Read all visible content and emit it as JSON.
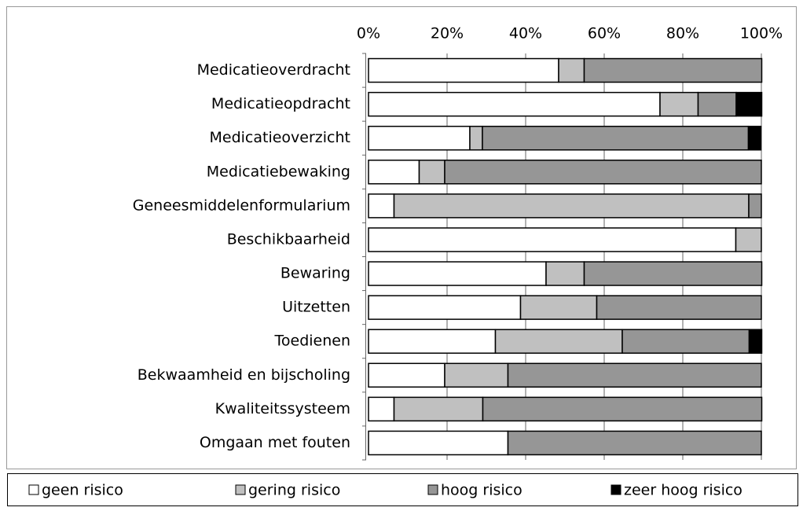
{
  "chart_data": {
    "type": "stacked_barh",
    "categories": [
      "Medicatieoverdracht",
      "Medicatieopdracht",
      "Medicatieoverzicht",
      "Medicatiebewaking",
      "Geneesmiddelenformularium",
      "Beschikbaarheid",
      "Bewaring",
      "Uitzetten",
      "Toedienen",
      "Bekwaamheid en bijscholing",
      "Kwaliteitssysteem",
      "Omgaan met fouten"
    ],
    "series": [
      {
        "name": "geen risico",
        "color": "#ffffff",
        "values": [
          48.4,
          74.2,
          25.8,
          12.9,
          6.5,
          93.5,
          45.2,
          38.7,
          32.3,
          19.4,
          6.5,
          35.5
        ]
      },
      {
        "name": "gering risico",
        "color": "#c0c0c0",
        "values": [
          6.5,
          9.7,
          3.2,
          6.5,
          90.3,
          6.5,
          9.7,
          19.4,
          32.3,
          16.1,
          22.6,
          0
        ]
      },
      {
        "name": "hoog risico",
        "color": "#969696",
        "values": [
          45.2,
          9.7,
          67.7,
          80.6,
          3.2,
          0,
          45.2,
          41.9,
          32.3,
          64.5,
          71.0,
          64.5
        ]
      },
      {
        "name": "zeer hoog risico",
        "color": "#000000",
        "values": [
          0,
          6.5,
          3.2,
          0,
          0,
          0,
          0,
          0,
          3.2,
          0,
          0,
          0
        ]
      }
    ],
    "xlim": [
      0,
      100
    ],
    "xticks": [
      {
        "value": 0,
        "label": "0%"
      },
      {
        "value": 20,
        "label": "20%"
      },
      {
        "value": 40,
        "label": "40%"
      },
      {
        "value": 60,
        "label": "60%"
      },
      {
        "value": 80,
        "label": "80%"
      },
      {
        "value": 100,
        "label": "100%"
      }
    ],
    "grid": true,
    "legend": "bottom"
  }
}
